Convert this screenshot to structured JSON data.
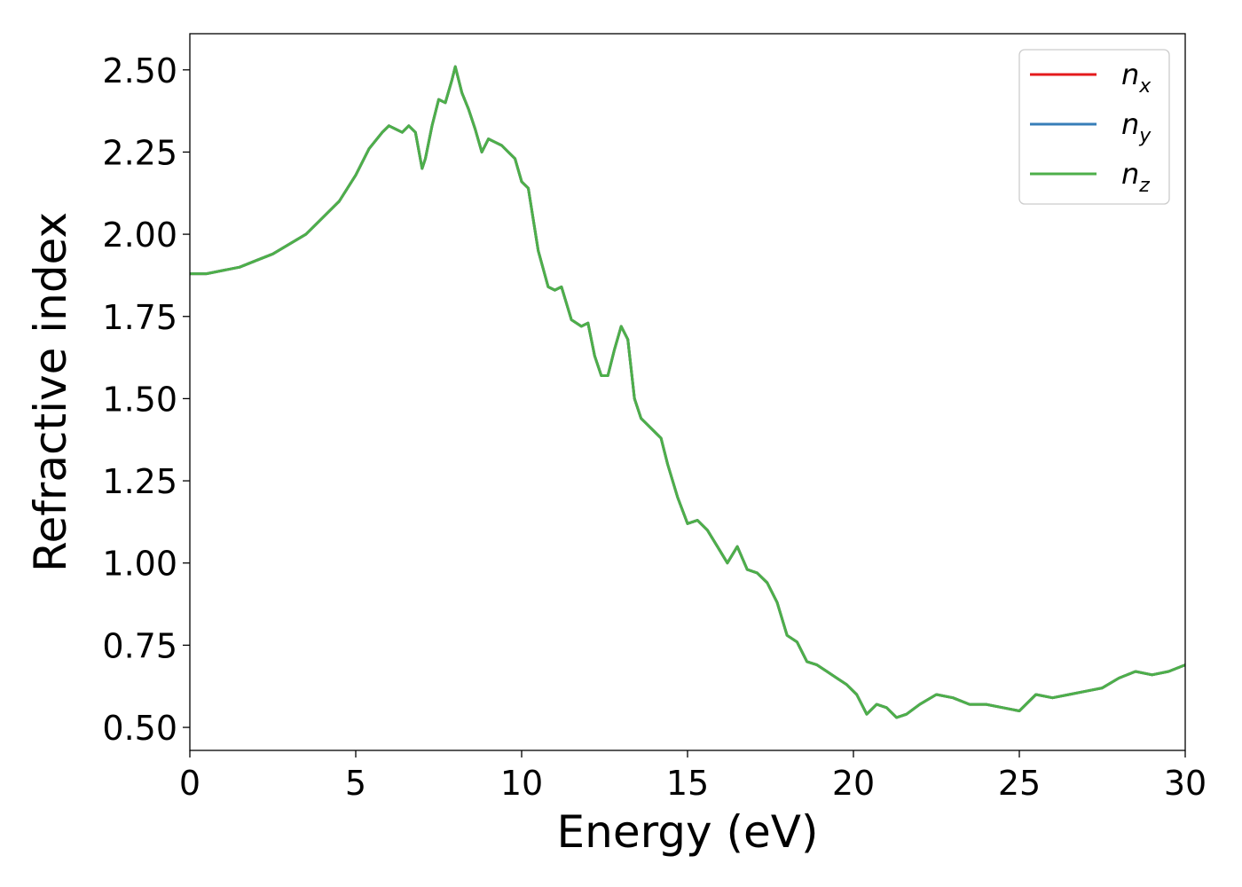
{
  "chart_data": {
    "type": "line",
    "title": "",
    "xlabel": "Energy (eV)",
    "ylabel": "Refractive index",
    "xlim": [
      0,
      30
    ],
    "ylim": [
      0.43,
      2.61
    ],
    "xticks": [
      0,
      5,
      10,
      15,
      20,
      25,
      30
    ],
    "xtick_labels": [
      "0",
      "5",
      "10",
      "15",
      "20",
      "25",
      "30"
    ],
    "yticks": [
      0.5,
      0.75,
      1.0,
      1.25,
      1.5,
      1.75,
      2.0,
      2.25,
      2.5
    ],
    "ytick_labels": [
      "0.50",
      "0.75",
      "1.00",
      "1.25",
      "1.50",
      "1.75",
      "2.00",
      "2.25",
      "2.50"
    ],
    "grid": false,
    "legend_position": "top-right",
    "legend": [
      {
        "base": "n",
        "sub": "x",
        "color": "#e41a1c"
      },
      {
        "base": "n",
        "sub": "y",
        "color": "#377eb8"
      },
      {
        "base": "n",
        "sub": "z",
        "color": "#4daf4a"
      }
    ],
    "x": [
      0,
      0.5,
      1,
      1.5,
      2,
      2.5,
      3,
      3.5,
      4,
      4.5,
      5,
      5.4,
      5.8,
      6.0,
      6.2,
      6.4,
      6.6,
      6.8,
      7.0,
      7.1,
      7.3,
      7.5,
      7.7,
      7.9,
      8.0,
      8.2,
      8.4,
      8.6,
      8.8,
      9.0,
      9.2,
      9.4,
      9.6,
      9.8,
      10.0,
      10.2,
      10.5,
      10.8,
      11.0,
      11.2,
      11.5,
      11.8,
      12.0,
      12.2,
      12.4,
      12.6,
      12.8,
      13.0,
      13.2,
      13.4,
      13.6,
      13.8,
      14.0,
      14.2,
      14.4,
      14.7,
      15.0,
      15.3,
      15.6,
      15.9,
      16.2,
      16.5,
      16.8,
      17.1,
      17.4,
      17.7,
      18.0,
      18.3,
      18.6,
      18.9,
      19.2,
      19.5,
      19.8,
      20.1,
      20.4,
      20.7,
      21.0,
      21.3,
      21.6,
      22.0,
      22.5,
      23.0,
      23.5,
      24.0,
      24.5,
      25.0,
      25.5,
      26.0,
      26.5,
      27.0,
      27.5,
      28.0,
      28.5,
      29.0,
      29.5,
      30.0
    ],
    "series": [
      {
        "name": "n_x",
        "color": "#e41a1c",
        "values": [
          1.88,
          1.88,
          1.89,
          1.9,
          1.92,
          1.94,
          1.97,
          2.0,
          2.05,
          2.1,
          2.18,
          2.26,
          2.31,
          2.33,
          2.32,
          2.31,
          2.33,
          2.31,
          2.2,
          2.23,
          2.33,
          2.41,
          2.4,
          2.47,
          2.51,
          2.43,
          2.38,
          2.32,
          2.25,
          2.29,
          2.28,
          2.27,
          2.25,
          2.23,
          2.16,
          2.14,
          1.95,
          1.84,
          1.83,
          1.84,
          1.74,
          1.72,
          1.73,
          1.63,
          1.57,
          1.57,
          1.65,
          1.72,
          1.68,
          1.5,
          1.44,
          1.42,
          1.4,
          1.38,
          1.3,
          1.2,
          1.12,
          1.13,
          1.1,
          1.05,
          1.0,
          1.05,
          0.98,
          0.97,
          0.94,
          0.88,
          0.78,
          0.76,
          0.7,
          0.69,
          0.67,
          0.65,
          0.63,
          0.6,
          0.54,
          0.57,
          0.56,
          0.53,
          0.54,
          0.57,
          0.6,
          0.59,
          0.57,
          0.57,
          0.56,
          0.55,
          0.6,
          0.59,
          0.6,
          0.61,
          0.62,
          0.65,
          0.67,
          0.66,
          0.67,
          0.69
        ]
      },
      {
        "name": "n_y",
        "color": "#377eb8",
        "values": [
          1.88,
          1.88,
          1.89,
          1.9,
          1.92,
          1.94,
          1.97,
          2.0,
          2.05,
          2.1,
          2.18,
          2.26,
          2.31,
          2.33,
          2.32,
          2.31,
          2.33,
          2.31,
          2.2,
          2.23,
          2.33,
          2.41,
          2.4,
          2.47,
          2.51,
          2.43,
          2.38,
          2.32,
          2.25,
          2.29,
          2.28,
          2.27,
          2.25,
          2.23,
          2.16,
          2.14,
          1.95,
          1.84,
          1.83,
          1.84,
          1.74,
          1.72,
          1.73,
          1.63,
          1.57,
          1.57,
          1.65,
          1.72,
          1.68,
          1.5,
          1.44,
          1.42,
          1.4,
          1.38,
          1.3,
          1.2,
          1.12,
          1.13,
          1.1,
          1.05,
          1.0,
          1.05,
          0.98,
          0.97,
          0.94,
          0.88,
          0.78,
          0.76,
          0.7,
          0.69,
          0.67,
          0.65,
          0.63,
          0.6,
          0.54,
          0.57,
          0.56,
          0.53,
          0.54,
          0.57,
          0.6,
          0.59,
          0.57,
          0.57,
          0.56,
          0.55,
          0.6,
          0.59,
          0.6,
          0.61,
          0.62,
          0.65,
          0.67,
          0.66,
          0.67,
          0.69
        ]
      },
      {
        "name": "n_z",
        "color": "#4daf4a",
        "values": [
          1.88,
          1.88,
          1.89,
          1.9,
          1.92,
          1.94,
          1.97,
          2.0,
          2.05,
          2.1,
          2.18,
          2.26,
          2.31,
          2.33,
          2.32,
          2.31,
          2.33,
          2.31,
          2.2,
          2.23,
          2.33,
          2.41,
          2.4,
          2.47,
          2.51,
          2.43,
          2.38,
          2.32,
          2.25,
          2.29,
          2.28,
          2.27,
          2.25,
          2.23,
          2.16,
          2.14,
          1.95,
          1.84,
          1.83,
          1.84,
          1.74,
          1.72,
          1.73,
          1.63,
          1.57,
          1.57,
          1.65,
          1.72,
          1.68,
          1.5,
          1.44,
          1.42,
          1.4,
          1.38,
          1.3,
          1.2,
          1.12,
          1.13,
          1.1,
          1.05,
          1.0,
          1.05,
          0.98,
          0.97,
          0.94,
          0.88,
          0.78,
          0.76,
          0.7,
          0.69,
          0.67,
          0.65,
          0.63,
          0.6,
          0.54,
          0.57,
          0.56,
          0.53,
          0.54,
          0.57,
          0.6,
          0.59,
          0.57,
          0.57,
          0.56,
          0.55,
          0.6,
          0.59,
          0.6,
          0.61,
          0.62,
          0.65,
          0.67,
          0.66,
          0.67,
          0.69
        ]
      }
    ]
  }
}
